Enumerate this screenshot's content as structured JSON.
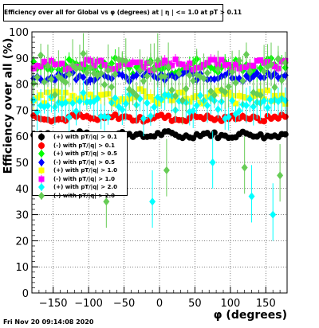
{
  "chart_data": {
    "type": "scatter",
    "title": "Efficiency over all for Global vs φ (degrees) at | η | <= 1.0 at pT > 0.11",
    "xlabel": "φ (degrees)",
    "ylabel": "Efficiency over all (%)",
    "xlim": [
      -180,
      180
    ],
    "ylim": [
      0,
      100
    ],
    "xticks": [
      -150,
      -100,
      -50,
      0,
      50,
      100,
      150
    ],
    "yticks": [
      0,
      10,
      20,
      30,
      40,
      50,
      60,
      70,
      80,
      90,
      100
    ],
    "grid": true,
    "legend_position": "left",
    "series": [
      {
        "name": "(+) with pT/|q| > 0.1",
        "color": "#000000",
        "marker": "circle",
        "mean": 60.5,
        "spread": 1.0,
        "err": 0.8
      },
      {
        "name": "(-) with pT/|q| > 0.1",
        "color": "#ff0000",
        "marker": "circle",
        "mean": 67.0,
        "spread": 1.0,
        "err": 1.0
      },
      {
        "name": "(+) with pT/|q| > 0.5",
        "color": "#00ff00",
        "marker": "diamond",
        "mean": 87.0,
        "spread": 2.0,
        "err": 2.5
      },
      {
        "name": "(-) with pT/|q| > 0.5",
        "color": "#0000ff",
        "marker": "diamond",
        "mean": 83.0,
        "spread": 1.5,
        "err": 1.5
      },
      {
        "name": "(+) with pT/|q| > 1.0",
        "color": "#ffff00",
        "marker": "square",
        "mean": 75.0,
        "spread": 2.0,
        "err": 2.5
      },
      {
        "name": "(-) with pT/|q| > 1.0",
        "color": "#ff00ff",
        "marker": "square",
        "mean": 87.5,
        "spread": 1.5,
        "err": 1.5
      },
      {
        "name": "(+) with pT/|q| > 2.0",
        "color": "#00ffff",
        "marker": "diamond",
        "mean": 72.0,
        "spread": 3.5,
        "err": 5.0
      },
      {
        "name": "(-) with pT/|q| > 2.0",
        "color": "#66cc55",
        "marker": "diamond",
        "mean": 83.0,
        "spread": 6.0,
        "err": 7.0
      }
    ],
    "outliers": [
      {
        "series": 7,
        "x": -75,
        "y": 35
      },
      {
        "series": 6,
        "x": -10,
        "y": 35
      },
      {
        "series": 7,
        "x": 10,
        "y": 47
      },
      {
        "series": 6,
        "x": 130,
        "y": 37
      },
      {
        "series": 6,
        "x": 160,
        "y": 30
      },
      {
        "series": 7,
        "x": 170,
        "y": 45
      },
      {
        "series": 7,
        "x": 120,
        "y": 48
      },
      {
        "series": 6,
        "x": 75,
        "y": 50
      }
    ],
    "date": "Fri Nov 20 09:14:08 2020"
  }
}
